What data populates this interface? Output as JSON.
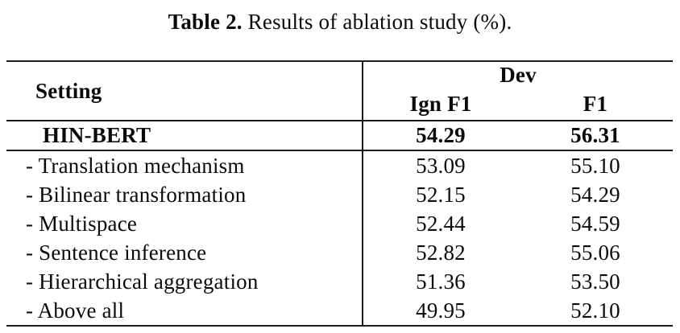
{
  "caption": {
    "prefix": "Table 2.",
    "text": " Results of ablation study (%)."
  },
  "table": {
    "headers": {
      "setting": "Setting",
      "group_dev": "Dev",
      "ign_f1": "Ign F1",
      "f1": "F1"
    },
    "main_row": {
      "label": "HIN-BERT",
      "ign_f1": "54.29",
      "f1": "56.31"
    },
    "ablation_rows": [
      {
        "label": "- Translation mechanism",
        "ign_f1": "53.09",
        "f1": "55.10"
      },
      {
        "label": "- Bilinear transformation",
        "ign_f1": "52.15",
        "f1": "54.29"
      },
      {
        "label": "- Multispace",
        "ign_f1": "52.44",
        "f1": "54.59"
      },
      {
        "label": "- Sentence inference",
        "ign_f1": "52.82",
        "f1": "55.06"
      },
      {
        "label": "- Hierarchical aggregation",
        "ign_f1": "51.36",
        "f1": "53.50"
      },
      {
        "label": "- Above all",
        "ign_f1": "49.95",
        "f1": "52.10"
      }
    ],
    "colors": {
      "text": "#0a0a0a",
      "rule": "#1c1c1c",
      "background": "#ffffff"
    }
  }
}
